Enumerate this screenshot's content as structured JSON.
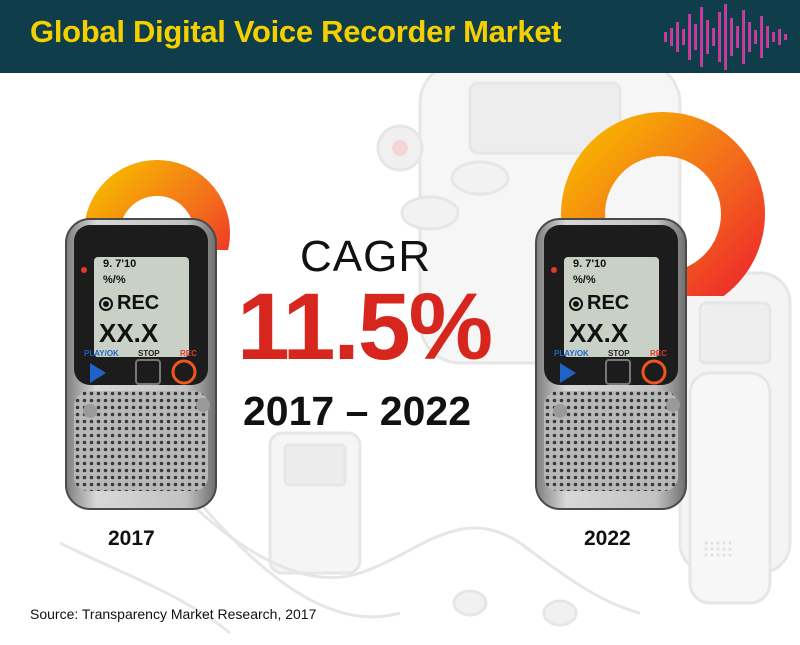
{
  "header": {
    "title": "Global Digital Voice Recorder Market"
  },
  "colors": {
    "header_bg": "#0f3d4a",
    "title": "#f5d000",
    "cagr_value": "#d7261e",
    "ring_outer": "#f7b500",
    "ring_inner": "#ee2a2a"
  },
  "cagr": {
    "label": "CAGR",
    "value": "11.5%",
    "period": "2017 – 2022"
  },
  "devices": [
    {
      "year": "2017",
      "screen_time": "9. 7'10",
      "screen_line2": "%/%",
      "screen_rec": "REC",
      "screen_value": "XX.X",
      "btn_play": "PLAY/OK",
      "btn_stop": "STOP",
      "btn_rec": "REC"
    },
    {
      "year": "2022",
      "screen_time": "9. 7'10",
      "screen_line2": "%/%",
      "screen_rec": "REC",
      "screen_value": "XX.X",
      "btn_play": "PLAY/OK",
      "btn_stop": "STOP",
      "btn_rec": "REC"
    }
  ],
  "source": "Source: Transparency Market Research, 2017",
  "icons": [
    "sound-wave-icon",
    "voice-recorder-icon"
  ]
}
